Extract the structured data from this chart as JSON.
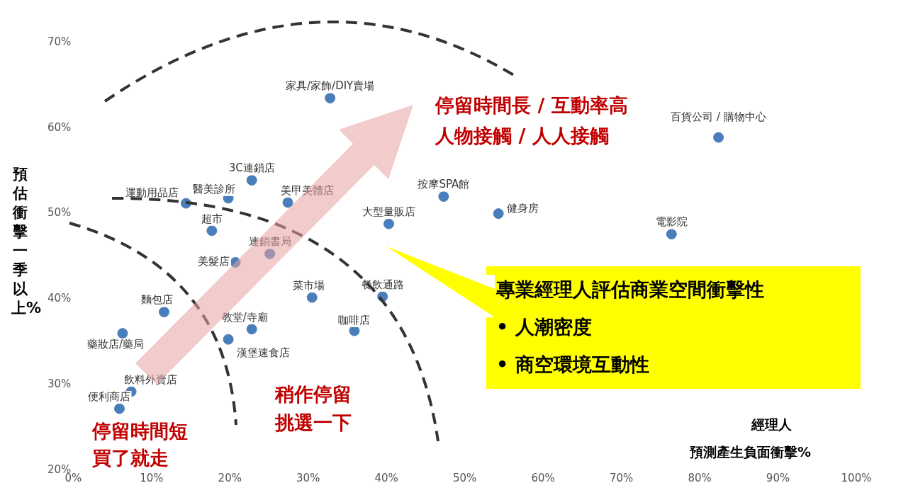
{
  "chart_data": {
    "type": "scatter",
    "xlabel": "預測產生負面衝擊%",
    "ylabel": "預估衝擊一季以上%",
    "x": [
      32.8,
      82.4,
      22.8,
      19.8,
      14.4,
      27.4,
      17.7,
      47.3,
      54.3,
      40.3,
      76.4,
      20.7,
      25.1,
      30.5,
      39.5,
      11.6,
      35.9,
      22.8,
      6.3,
      19.8,
      7.4,
      5.9
    ],
    "series": [
      {
        "color": "#4a7ebb",
        "values": [
          63.5,
          58.9,
          53.9,
          51.8,
          51.2,
          51.3,
          48.0,
          52.0,
          50.0,
          48.8,
          47.6,
          44.3,
          45.3,
          40.2,
          40.3,
          38.5,
          36.3,
          36.5,
          36.0,
          35.3,
          29.2,
          27.2
        ]
      }
    ],
    "xlim": [
      0,
      100
    ],
    "xticks": [
      {
        "value": 0,
        "label": "0%"
      },
      {
        "value": 10,
        "label": "10%"
      },
      {
        "value": 20,
        "label": "20%"
      },
      {
        "value": 30,
        "label": "30%"
      },
      {
        "value": 40,
        "label": "40%"
      },
      {
        "value": 50,
        "label": "50%"
      },
      {
        "value": 60,
        "label": "60%"
      },
      {
        "value": 70,
        "label": "70%"
      },
      {
        "value": 80,
        "label": "80%"
      },
      {
        "value": 90,
        "label": "90%"
      },
      {
        "value": 100,
        "label": "100%"
      }
    ],
    "ylim": [
      20,
      70
    ],
    "yticks": [
      {
        "value": 20,
        "label": "20%"
      },
      {
        "value": 30,
        "label": "30%"
      },
      {
        "value": 40,
        "label": "40%"
      },
      {
        "value": 50,
        "label": "50%"
      },
      {
        "value": 60,
        "label": "60%"
      },
      {
        "value": 70,
        "label": "70%"
      }
    ],
    "grid": false,
    "legend": false,
    "marker": "circle",
    "annotations": [
      {
        "text": "家具/家飾/DIY賣場",
        "x": 32.8,
        "y": 63.5
      },
      {
        "text": "百貨公司 / 購物中心",
        "x": 82.4,
        "y": 58.9
      },
      {
        "text": "3C連鎖店",
        "x": 22.8,
        "y": 53.9
      },
      {
        "text": "醫美診所",
        "x": 19.8,
        "y": 51.8
      },
      {
        "text": "運動用品店",
        "x": 14.4,
        "y": 51.2
      },
      {
        "text": "美甲美體店",
        "x": 27.4,
        "y": 51.3
      },
      {
        "text": "超市",
        "x": 17.7,
        "y": 48.0
      },
      {
        "text": "按摩SPA館",
        "x": 47.3,
        "y": 52.0
      },
      {
        "text": "健身房",
        "x": 54.3,
        "y": 50.0
      },
      {
        "text": "大型量販店",
        "x": 40.3,
        "y": 48.8
      },
      {
        "text": "電影院",
        "x": 76.4,
        "y": 47.6
      },
      {
        "text": "美髮店",
        "x": 20.7,
        "y": 44.3
      },
      {
        "text": "連鎖書局",
        "x": 25.1,
        "y": 45.3
      },
      {
        "text": "菜市場",
        "x": 30.5,
        "y": 40.2
      },
      {
        "text": "餐飲通路",
        "x": 39.5,
        "y": 40.3
      },
      {
        "text": "麵包店",
        "x": 11.6,
        "y": 38.5
      },
      {
        "text": "咖啡店",
        "x": 35.9,
        "y": 36.3
      },
      {
        "text": "教堂/寺廟",
        "x": 22.8,
        "y": 36.5
      },
      {
        "text": "藥妝店/藥局",
        "x": 6.3,
        "y": 36.0
      },
      {
        "text": "漢堡速食店",
        "x": 19.8,
        "y": 35.3
      },
      {
        "text": "飲料外賣店",
        "x": 7.4,
        "y": 29.2
      },
      {
        "text": "便利商店",
        "x": 5.9,
        "y": 27.2
      },
      "停留時間長 / 互動率高",
      "人物接觸 / 人人接觸",
      "稍作停留",
      "挑選一下",
      "停留時間短",
      "買了就走",
      "經理人",
      "專業經理人評估商業空間衝擊性",
      "•   人潮密度",
      "•   商空環境互動性"
    ]
  }
}
